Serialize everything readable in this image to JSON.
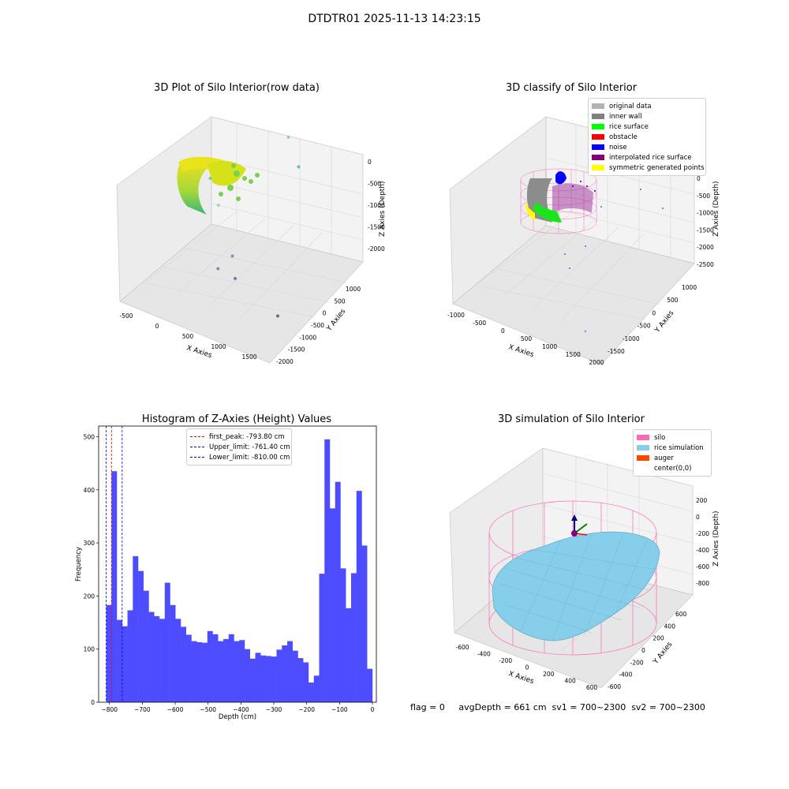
{
  "figure": {
    "suptitle": "DTDTR01 2025-11-13 14:23:15",
    "footer": "flag = 0     avgDepth = 661 cm  sv1 = 700~2300  sv2 = 700~2300"
  },
  "chart_data": [
    {
      "type": "scatter",
      "projection": "3d",
      "title": "3D Plot of Silo Interior(row data)",
      "xlabel": "X Axies",
      "ylabel": "Y Axies",
      "zlabel": "Z Axies (Depth)",
      "x_ticks": [
        "-500",
        "0",
        "500",
        "1000",
        "1500"
      ],
      "y_ticks": [
        "1000",
        "500",
        "0",
        "-500",
        "-1000",
        "-1500",
        "-2000"
      ],
      "z_ticks": [
        "0",
        "-500",
        "-1000",
        "-1500",
        "-2000"
      ],
      "colormap": "viridis",
      "points": [
        {
          "x": 200,
          "y": 400,
          "z": -1000
        },
        {
          "x": 350,
          "y": 200,
          "z": -1300
        },
        {
          "x": 600,
          "y": -100,
          "z": -1900
        },
        {
          "x": 450,
          "y": -300,
          "z": -2000
        },
        {
          "x": 700,
          "y": -400,
          "z": -2100
        },
        {
          "x": 1500,
          "y": -1500,
          "z": -2200
        },
        {
          "x": 1200,
          "y": 600,
          "z": -500
        },
        {
          "x": 1400,
          "y": 300,
          "z": -800
        }
      ]
    },
    {
      "type": "scatter",
      "projection": "3d",
      "title": "3D classify of Silo Interior",
      "xlabel": "X Axies",
      "ylabel": "Y Axies",
      "zlabel": "Z Axies (Depth)",
      "x_ticks": [
        "-1000",
        "-500",
        "0",
        "500",
        "1000",
        "1500",
        "2000"
      ],
      "y_ticks": [
        "1000",
        "500",
        "0",
        "-500",
        "-1000",
        "-1500"
      ],
      "z_ticks": [
        "0",
        "-500",
        "-1000",
        "-1500",
        "-2000",
        "-2500"
      ],
      "legend": {
        "position": "upper right",
        "entries": [
          {
            "name": "original data",
            "color": "#b3b3b3"
          },
          {
            "name": "inner wall",
            "color": "#808080"
          },
          {
            "name": "rice surface",
            "color": "#00ff00"
          },
          {
            "name": "obstacle",
            "color": "#ff0000"
          },
          {
            "name": "noise",
            "color": "#0000ff"
          },
          {
            "name": "interpolated rice surface",
            "color": "#800080"
          },
          {
            "name": "symmetric generated points",
            "color": "#ffff00"
          }
        ]
      }
    },
    {
      "type": "bar",
      "title": "Histogram of Z-Axies (Height) Values",
      "xlabel": "Depth (cm)",
      "ylabel": "Frequency",
      "xlim": [
        -833,
        12
      ],
      "ylim": [
        0,
        520
      ],
      "x_ticks": [
        -800,
        -700,
        -600,
        -500,
        -400,
        -300,
        -200,
        -100,
        0
      ],
      "y_ticks": [
        0,
        100,
        200,
        300,
        400,
        500
      ],
      "bar_color": "#4d4dff",
      "bin_start": -810,
      "bin_width": 16.2,
      "values": [
        183,
        435,
        155,
        143,
        173,
        275,
        247,
        210,
        170,
        162,
        157,
        225,
        183,
        157,
        142,
        127,
        115,
        113,
        112,
        134,
        128,
        115,
        119,
        128,
        115,
        117,
        100,
        82,
        93,
        88,
        87,
        86,
        99,
        107,
        115,
        97,
        83,
        75,
        37,
        50,
        242,
        495,
        365,
        415,
        252,
        177,
        243,
        398,
        295,
        63
      ],
      "vlines": [
        {
          "name": "first_peak: -793.80 cm",
          "x": -793.8,
          "color": "#ff0000"
        },
        {
          "name": "Upper_limit: -761.40 cm",
          "x": -761.4,
          "color": "#0000ff"
        },
        {
          "name": "Lower_limit: -810.00 cm",
          "x": -810.0,
          "color": "#0000ff"
        }
      ],
      "legend_position": "upper center"
    },
    {
      "type": "surface",
      "projection": "3d",
      "title": "3D simulation of Silo Interior",
      "xlabel": "X Axies",
      "ylabel": "Y Axies",
      "zlabel": "Z Axies (Depth)",
      "x_ticks": [
        "-600",
        "-400",
        "-200",
        "0",
        "200",
        "400",
        "600"
      ],
      "y_ticks": [
        "600",
        "400",
        "200",
        "0",
        "-200",
        "-400",
        "-600"
      ],
      "z_ticks": [
        "200",
        "0",
        "-200",
        "-400",
        "-600",
        "-800"
      ],
      "legend": {
        "position": "upper right",
        "entries": [
          {
            "name": "silo",
            "color": "#ff69b4"
          },
          {
            "name": "rice simulation",
            "color": "#87ceeb"
          },
          {
            "name": "auger",
            "color": "#ff4500"
          },
          {
            "name": "center(0,0)",
            "color": "#ffffff"
          }
        ]
      }
    }
  ]
}
